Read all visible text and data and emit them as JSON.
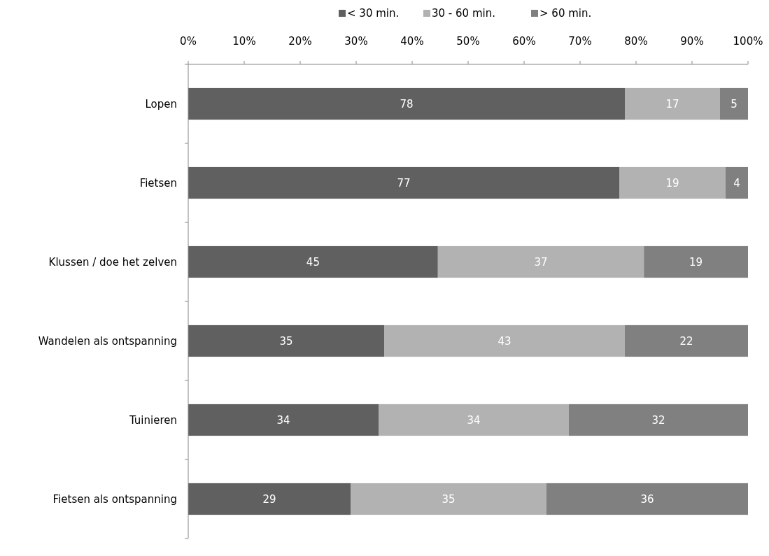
{
  "chart_data": {
    "type": "bar",
    "orientation": "horizontal",
    "stacked": true,
    "categories": [
      "Lopen",
      "Fietsen",
      "Klussen / doe het zelven",
      "Wandelen als ontspanning",
      "Tuinieren",
      "Fietsen als ontspanning"
    ],
    "series": [
      {
        "name": "< 30 min.",
        "color": "#606060",
        "values": [
          78,
          77,
          44.6,
          35,
          34,
          29
        ],
        "value_labels": [
          "78",
          "77",
          "45",
          "35",
          "34",
          "29"
        ]
      },
      {
        "name": "30 - 60 min.",
        "color": "#b2b2b2",
        "values": [
          17,
          19,
          36.8,
          43,
          34,
          35
        ],
        "value_labels": [
          "17",
          "19",
          "37",
          "43",
          "34",
          "35"
        ]
      },
      {
        "name": "> 60 min.",
        "color": "#808080",
        "values": [
          5,
          4,
          18.6,
          22,
          32,
          36
        ],
        "value_labels": [
          "5",
          "4",
          "19",
          "22",
          "32",
          "36"
        ]
      }
    ],
    "xlim": [
      0,
      100
    ],
    "xticks": [
      {
        "value": 0,
        "label": "0%"
      },
      {
        "value": 10,
        "label": "10%"
      },
      {
        "value": 20,
        "label": "20%"
      },
      {
        "value": 30,
        "label": "30%"
      },
      {
        "value": 40,
        "label": "40%"
      },
      {
        "value": 50,
        "label": "50%"
      },
      {
        "value": 60,
        "label": "60%"
      },
      {
        "value": 70,
        "label": "70%"
      },
      {
        "value": 80,
        "label": "80%"
      },
      {
        "value": 90,
        "label": "90%"
      },
      {
        "value": 100,
        "label": "100%"
      }
    ],
    "grid": false,
    "legend": "top"
  }
}
